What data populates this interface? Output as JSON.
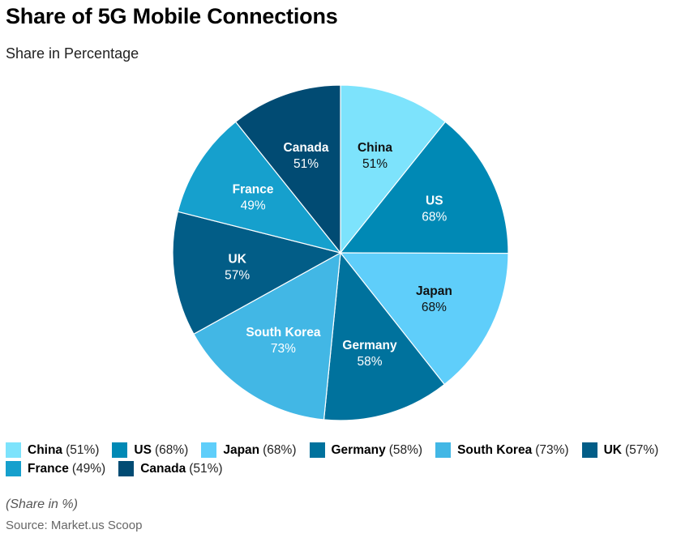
{
  "chart_data": {
    "type": "pie",
    "title": "Share of 5G Mobile Connections",
    "subtitle": "Share in Percentage",
    "unit": "%",
    "categories": [
      "China",
      "US",
      "Japan",
      "Germany",
      "South Korea",
      "UK",
      "France",
      "Canada"
    ],
    "values": [
      51,
      68,
      68,
      58,
      73,
      57,
      49,
      51
    ],
    "colors": [
      "#7de3fc",
      "#0089b5",
      "#5fcefa",
      "#00729d",
      "#42b7e5",
      "#025d87",
      "#16a0cd",
      "#014b73"
    ],
    "label_colors": [
      "#111111",
      "#ffffff",
      "#111111",
      "#ffffff",
      "#ffffff",
      "#ffffff",
      "#ffffff",
      "#ffffff"
    ],
    "legend_position": "bottom",
    "start_angle": "top",
    "direction": "clockwise"
  },
  "header": {
    "title": "Share of 5G Mobile Connections",
    "subtitle": "Share in Percentage"
  },
  "legend": {
    "items": [
      {
        "name": "China",
        "value": "(51%)"
      },
      {
        "name": "US",
        "value": "(68%)"
      },
      {
        "name": "Japan",
        "value": "(68%)"
      },
      {
        "name": "Germany",
        "value": "(58%)"
      },
      {
        "name": "South Korea",
        "value": "(73%)"
      },
      {
        "name": "UK",
        "value": "(57%)"
      },
      {
        "name": "France",
        "value": "(49%)"
      },
      {
        "name": "Canada",
        "value": "(51%)"
      }
    ]
  },
  "footer": {
    "note": "(Share in %)",
    "source": "Source: Market.us Scoop"
  }
}
